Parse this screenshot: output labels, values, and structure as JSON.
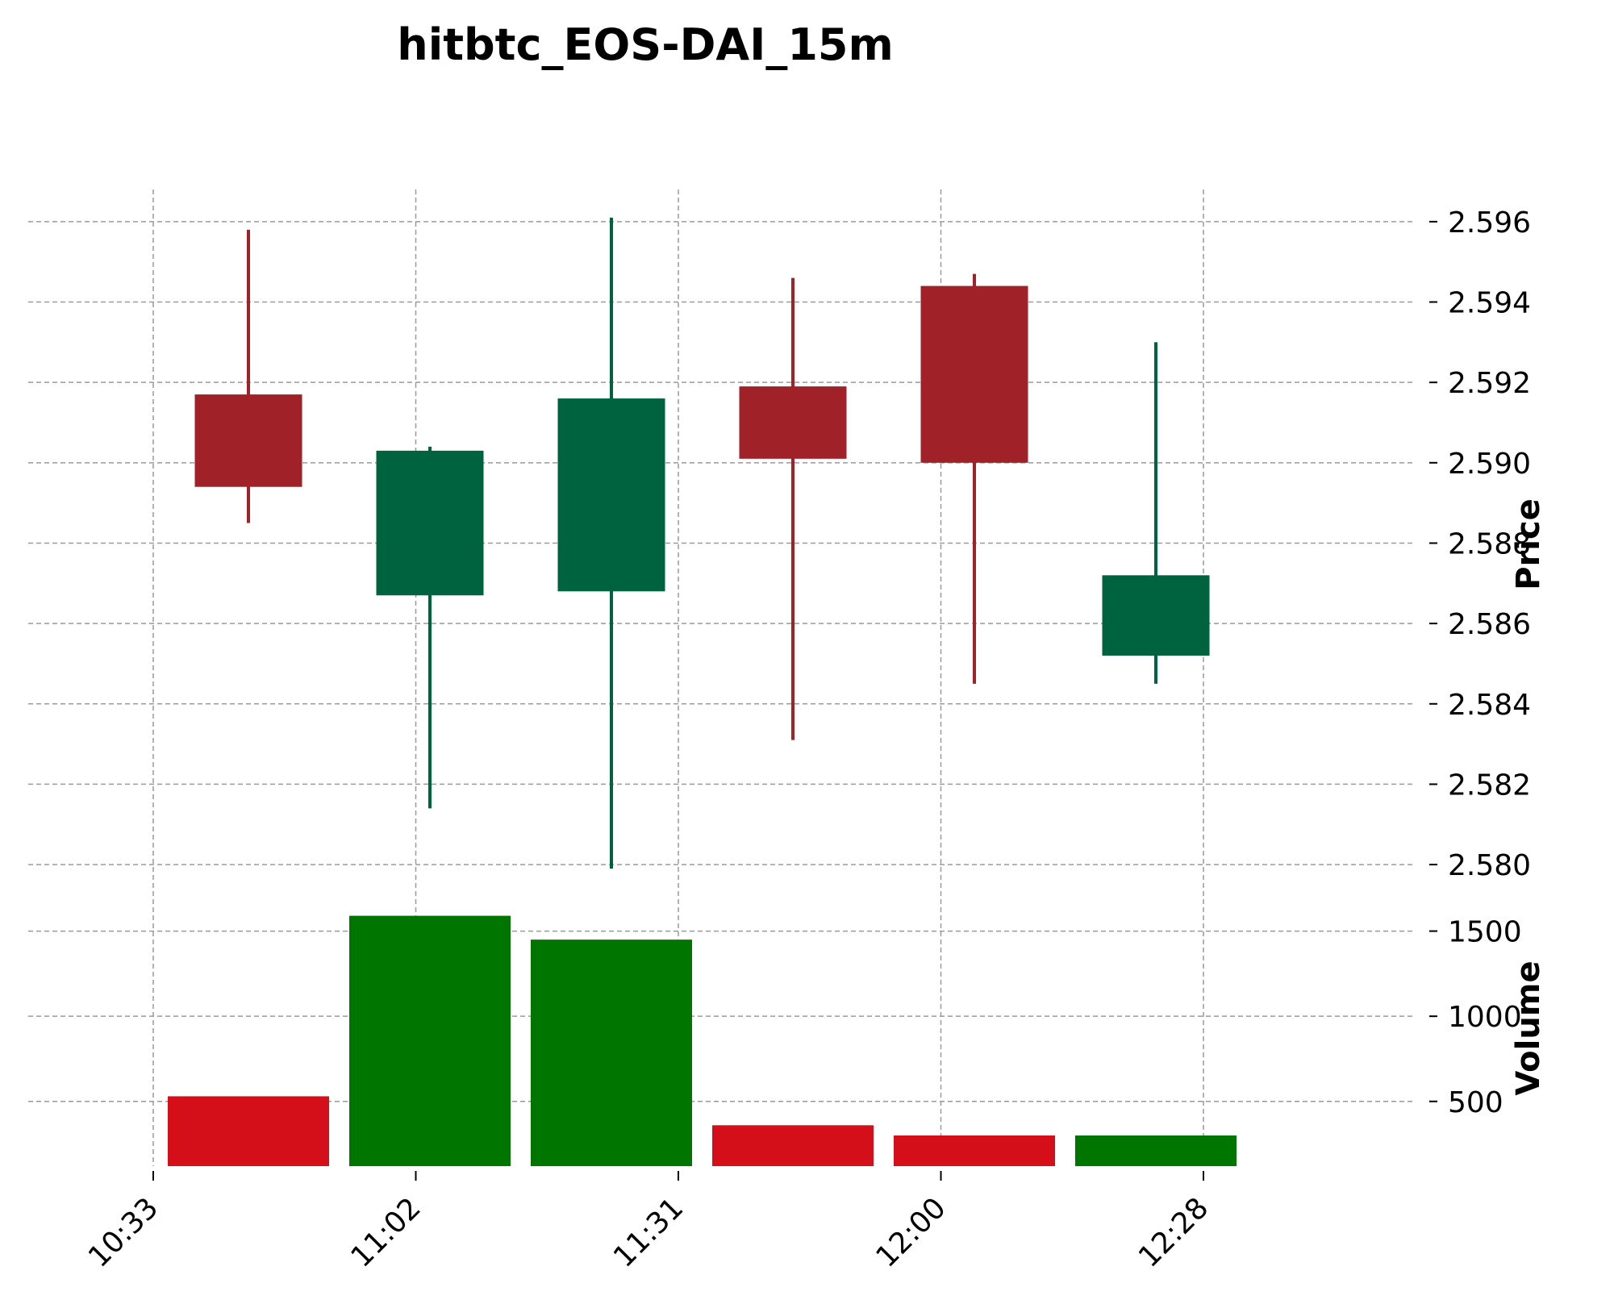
{
  "chart_data": {
    "type": "candlestick",
    "title": "hitbtc_EOS-DAI_15m",
    "price_label": "Price",
    "volume_label": "Volume",
    "x_tick_labels": [
      "10:33",
      "11:02",
      "11:31",
      "12:00",
      "12:28"
    ],
    "price_ticks": [
      "2.596",
      "2.594",
      "2.592",
      "2.590",
      "2.588",
      "2.586",
      "2.584",
      "2.582",
      "2.580"
    ],
    "volume_ticks": [
      "1500",
      "1000",
      "500"
    ],
    "price_ylim": [
      2.5795,
      2.5968
    ],
    "volume_ylim": [
      120,
      1640
    ],
    "grid": true,
    "colors": {
      "up_candle": "#006340",
      "down_candle": "#a02128",
      "up_volume": "#007500",
      "down_volume": "#d40f19",
      "grid": "#9a9a9a"
    },
    "candles": [
      {
        "open": 2.5917,
        "high": 2.5958,
        "low": 2.5885,
        "close": 2.5894,
        "volume": 530
      },
      {
        "open": 2.5867,
        "high": 2.5904,
        "low": 2.5814,
        "close": 2.5903,
        "volume": 1590
      },
      {
        "open": 2.5868,
        "high": 2.5961,
        "low": 2.5799,
        "close": 2.5916,
        "volume": 1450
      },
      {
        "open": 2.5919,
        "high": 2.5946,
        "low": 2.5831,
        "close": 2.5901,
        "volume": 360
      },
      {
        "open": 2.5944,
        "high": 2.5947,
        "low": 2.5845,
        "close": 2.59,
        "volume": 300
      },
      {
        "open": 2.5852,
        "high": 2.593,
        "low": 2.5845,
        "close": 2.5872,
        "volume": 300
      }
    ]
  }
}
